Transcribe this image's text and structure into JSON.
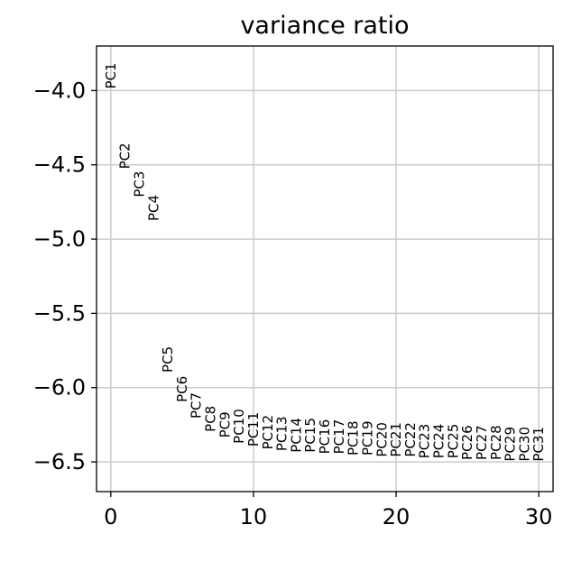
{
  "chart_data": {
    "type": "scatter",
    "title": "variance ratio",
    "xlabel": "",
    "ylabel": "",
    "xlim": [
      -1,
      31
    ],
    "ylim": [
      -6.7,
      -3.7
    ],
    "xticks": [
      0,
      10,
      20,
      30
    ],
    "yticks": [
      -4.0,
      -4.5,
      -5.0,
      -5.5,
      -6.0,
      -6.5
    ],
    "xtick_labels": [
      "0",
      "10",
      "20",
      "30"
    ],
    "ytick_labels": [
      "−4.0",
      "−4.5",
      "−5.0",
      "−5.5",
      "−6.0",
      "−6.5"
    ],
    "grid": true,
    "points": [
      {
        "label": "PC1",
        "x": 0,
        "y": -3.9
      },
      {
        "label": "PC2",
        "x": 1,
        "y": -4.44
      },
      {
        "label": "PC3",
        "x": 2,
        "y": -4.63
      },
      {
        "label": "PC4",
        "x": 3,
        "y": -4.79
      },
      {
        "label": "PC5",
        "x": 4,
        "y": -5.81
      },
      {
        "label": "PC6",
        "x": 5,
        "y": -6.01
      },
      {
        "label": "PC7",
        "x": 6,
        "y": -6.12
      },
      {
        "label": "PC8",
        "x": 7,
        "y": -6.21
      },
      {
        "label": "PC9",
        "x": 8,
        "y": -6.25
      },
      {
        "label": "PC10",
        "x": 9,
        "y": -6.26
      },
      {
        "label": "PC11",
        "x": 10,
        "y": -6.28
      },
      {
        "label": "PC12",
        "x": 11,
        "y": -6.3
      },
      {
        "label": "PC13",
        "x": 12,
        "y": -6.31
      },
      {
        "label": "PC14",
        "x": 13,
        "y": -6.32
      },
      {
        "label": "PC15",
        "x": 14,
        "y": -6.32
      },
      {
        "label": "PC16",
        "x": 15,
        "y": -6.33
      },
      {
        "label": "PC17",
        "x": 16,
        "y": -6.33
      },
      {
        "label": "PC18",
        "x": 17,
        "y": -6.34
      },
      {
        "label": "PC19",
        "x": 18,
        "y": -6.34
      },
      {
        "label": "PC20",
        "x": 19,
        "y": -6.35
      },
      {
        "label": "PC21",
        "x": 20,
        "y": -6.35
      },
      {
        "label": "PC22",
        "x": 21,
        "y": -6.35
      },
      {
        "label": "PC23",
        "x": 22,
        "y": -6.36
      },
      {
        "label": "PC24",
        "x": 23,
        "y": -6.36
      },
      {
        "label": "PC25",
        "x": 24,
        "y": -6.36
      },
      {
        "label": "PC26",
        "x": 25,
        "y": -6.37
      },
      {
        "label": "PC27",
        "x": 26,
        "y": -6.37
      },
      {
        "label": "PC28",
        "x": 27,
        "y": -6.37
      },
      {
        "label": "PC29",
        "x": 28,
        "y": -6.38
      },
      {
        "label": "PC30",
        "x": 29,
        "y": -6.38
      },
      {
        "label": "PC31",
        "x": 30,
        "y": -6.38
      }
    ]
  }
}
